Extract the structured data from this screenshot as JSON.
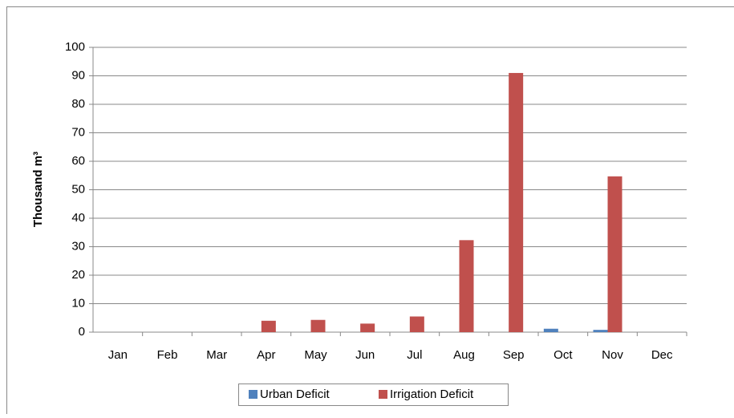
{
  "chart_data": {
    "type": "bar",
    "y_label": "Thousand m³",
    "categories": [
      "Jan",
      "Feb",
      "Mar",
      "Apr",
      "May",
      "Jun",
      "Jul",
      "Aug",
      "Sep",
      "Oct",
      "Nov",
      "Dec"
    ],
    "series": [
      {
        "name": "Urban Deficit",
        "color": "#4f81bd",
        "values": [
          0,
          0,
          0,
          0,
          0,
          0,
          0,
          0,
          0,
          1.2,
          0.8,
          0
        ]
      },
      {
        "name": "Irrigation Deficit",
        "color": "#c0504d",
        "values": [
          0,
          0,
          0,
          4,
          4.3,
          3,
          5.5,
          32.3,
          91,
          0,
          54.7,
          0
        ]
      }
    ],
    "ylim": [
      0,
      100
    ],
    "yticks": [
      0,
      10,
      20,
      30,
      40,
      50,
      60,
      70,
      80,
      90,
      100
    ],
    "grid": true,
    "legend": "bottom"
  }
}
